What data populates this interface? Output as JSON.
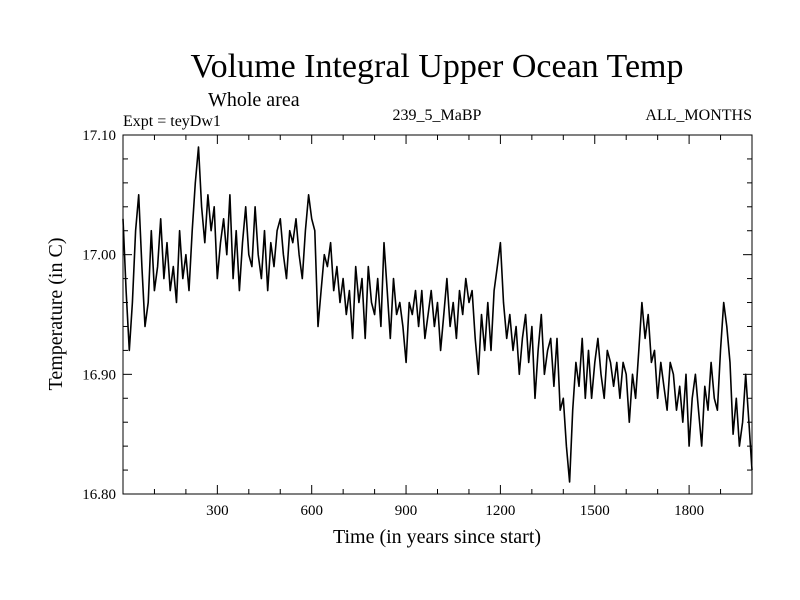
{
  "chart_data": {
    "type": "line",
    "title": "Volume Integral Upper Ocean Temp",
    "subtitle": "Whole area",
    "experiment": "Expt = teyDw1",
    "run_id": "239_5_MaBP",
    "period": "ALL_MONTHS",
    "xlabel": "Time (in years since start)",
    "ylabel": "Temperature (in C)",
    "xlim": [
      0,
      2000
    ],
    "ylim": [
      16.8,
      17.1
    ],
    "x_ticks": [
      300,
      600,
      900,
      1200,
      1500,
      1800
    ],
    "y_ticks": [
      "16.80",
      "16.90",
      "17.00",
      "17.10"
    ],
    "grid": false,
    "series": [
      {
        "name": "Volume Integral Upper Ocean Temp",
        "color": "#000000",
        "x": [
          0,
          10,
          20,
          30,
          40,
          50,
          60,
          70,
          80,
          90,
          100,
          110,
          120,
          130,
          140,
          150,
          160,
          170,
          180,
          190,
          200,
          210,
          220,
          230,
          240,
          250,
          260,
          270,
          280,
          290,
          300,
          310,
          320,
          330,
          340,
          350,
          360,
          370,
          380,
          390,
          400,
          410,
          420,
          430,
          440,
          450,
          460,
          470,
          480,
          490,
          500,
          510,
          520,
          530,
          540,
          550,
          560,
          570,
          580,
          590,
          600,
          610,
          620,
          630,
          640,
          650,
          660,
          670,
          680,
          690,
          700,
          710,
          720,
          730,
          740,
          750,
          760,
          770,
          780,
          790,
          800,
          810,
          820,
          830,
          840,
          850,
          860,
          870,
          880,
          890,
          900,
          910,
          920,
          930,
          940,
          950,
          960,
          970,
          980,
          990,
          1000,
          1010,
          1020,
          1030,
          1040,
          1050,
          1060,
          1070,
          1080,
          1090,
          1100,
          1110,
          1120,
          1130,
          1140,
          1150,
          1160,
          1170,
          1180,
          1190,
          1200,
          1210,
          1220,
          1230,
          1240,
          1250,
          1260,
          1270,
          1280,
          1290,
          1300,
          1310,
          1320,
          1330,
          1340,
          1350,
          1360,
          1370,
          1380,
          1390,
          1400,
          1410,
          1420,
          1430,
          1440,
          1450,
          1460,
          1470,
          1480,
          1490,
          1500,
          1510,
          1520,
          1530,
          1540,
          1550,
          1560,
          1570,
          1580,
          1590,
          1600,
          1610,
          1620,
          1630,
          1640,
          1650,
          1660,
          1670,
          1680,
          1690,
          1700,
          1710,
          1720,
          1730,
          1740,
          1750,
          1760,
          1770,
          1780,
          1790,
          1800,
          1810,
          1820,
          1830,
          1840,
          1850,
          1860,
          1870,
          1880,
          1890,
          1900,
          1910,
          1920,
          1930,
          1940,
          1950,
          1960,
          1970,
          1980,
          1990,
          2000
        ],
        "values": [
          17.03,
          16.97,
          16.92,
          16.96,
          17.02,
          17.05,
          16.99,
          16.94,
          16.96,
          17.02,
          16.97,
          16.99,
          17.03,
          16.98,
          17.01,
          16.97,
          16.99,
          16.96,
          17.02,
          16.98,
          17.0,
          16.97,
          17.02,
          17.06,
          17.09,
          17.04,
          17.01,
          17.05,
          17.02,
          17.04,
          16.98,
          17.01,
          17.03,
          17.0,
          17.05,
          16.98,
          17.02,
          16.97,
          17.01,
          17.04,
          17.0,
          16.99,
          17.04,
          17.0,
          16.98,
          17.02,
          16.97,
          17.01,
          16.99,
          17.02,
          17.03,
          17.0,
          16.98,
          17.02,
          17.01,
          17.03,
          17.0,
          16.98,
          17.02,
          17.05,
          17.03,
          17.02,
          16.94,
          16.97,
          17.0,
          16.99,
          17.01,
          16.97,
          16.99,
          16.96,
          16.98,
          16.95,
          16.97,
          16.93,
          16.99,
          16.96,
          16.98,
          16.93,
          16.99,
          16.96,
          16.95,
          16.98,
          16.94,
          17.01,
          16.97,
          16.93,
          16.98,
          16.95,
          16.96,
          16.94,
          16.91,
          16.96,
          16.95,
          16.97,
          16.94,
          16.97,
          16.93,
          16.95,
          16.97,
          16.94,
          16.96,
          16.92,
          16.95,
          16.98,
          16.94,
          16.96,
          16.93,
          16.97,
          16.95,
          16.98,
          16.96,
          16.97,
          16.93,
          16.9,
          16.95,
          16.92,
          16.96,
          16.92,
          16.97,
          16.99,
          17.01,
          16.96,
          16.93,
          16.95,
          16.92,
          16.94,
          16.9,
          16.93,
          16.95,
          16.91,
          16.94,
          16.88,
          16.92,
          16.95,
          16.9,
          16.92,
          16.93,
          16.89,
          16.93,
          16.87,
          16.88,
          16.84,
          16.81,
          16.87,
          16.91,
          16.89,
          16.93,
          16.88,
          16.92,
          16.88,
          16.91,
          16.93,
          16.9,
          16.88,
          16.92,
          16.91,
          16.89,
          16.91,
          16.88,
          16.91,
          16.9,
          16.86,
          16.9,
          16.88,
          16.92,
          16.96,
          16.93,
          16.95,
          16.91,
          16.92,
          16.88,
          16.91,
          16.89,
          16.87,
          16.91,
          16.9,
          16.87,
          16.89,
          16.86,
          16.9,
          16.84,
          16.88,
          16.9,
          16.87,
          16.84,
          16.89,
          16.87,
          16.91,
          16.88,
          16.87,
          16.92,
          16.96,
          16.94,
          16.91,
          16.85,
          16.88,
          16.84,
          16.86,
          16.9,
          16.86,
          16.82
        ]
      }
    ]
  }
}
